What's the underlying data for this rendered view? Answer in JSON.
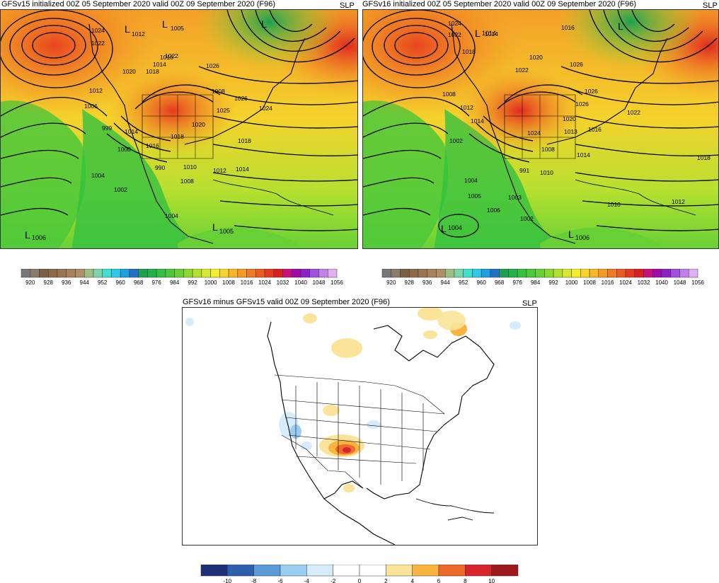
{
  "panels": [
    {
      "id": "gfsv15",
      "title": "GFSv15 initialized 00Z 05 September 2020 valid 00Z 09 September 2020 (F96)",
      "variable": "SLP",
      "contour_labels": [
        "1024",
        "1022",
        "1012",
        "1005",
        "1014",
        "1016",
        "1022",
        "1020",
        "1018",
        "1026",
        "1012",
        "1008",
        "1006",
        "1026",
        "1025",
        "999",
        "1014",
        "1020",
        "1024",
        "1016",
        "1018",
        "1000",
        "1018",
        "990",
        "1010",
        "1004",
        "1008",
        "1012",
        "1014",
        "1002",
        "1004",
        "1005",
        "1006",
        "1004",
        "1012"
      ],
      "lows": [
        "1006",
        "1005",
        "1012",
        "1005"
      ]
    },
    {
      "id": "gfsv16",
      "title": "GFSv16 initialized 00Z 05 September 2020 valid 00Z 09 September 2020 (F96)",
      "variable": "SLP",
      "contour_labels": [
        "1024",
        "1022",
        "1014",
        "1016",
        "1018",
        "1020",
        "1022",
        "1026",
        "1008",
        "1012",
        "1026",
        "1020",
        "1026",
        "1022",
        "1014",
        "1013",
        "1016",
        "1024",
        "1002",
        "1008",
        "1014",
        "1018",
        "991",
        "1010",
        "1004",
        "1005",
        "1006",
        "1003",
        "1002",
        "1010",
        "1012",
        "1004",
        "1006",
        "1008"
      ],
      "lows": [
        "1004",
        "1006",
        "1014"
      ]
    }
  ],
  "slp_colorbar": {
    "ticks": [
      "920",
      "928",
      "936",
      "944",
      "952",
      "960",
      "968",
      "976",
      "984",
      "992",
      "1000",
      "1008",
      "1016",
      "1024",
      "1032",
      "1040",
      "1048",
      "1056"
    ],
    "colors": [
      "#777777",
      "#8a7b6b",
      "#7a5f44",
      "#8d6a49",
      "#9b7552",
      "#a7825b",
      "#b08f66",
      "#9dbf86",
      "#7fd4a8",
      "#40e0d0",
      "#30c8e8",
      "#1ea0e0",
      "#2070c8",
      "#1fa050",
      "#22b04a",
      "#34c040",
      "#4cc83a",
      "#66d034",
      "#8ad830",
      "#b4e030",
      "#d8e830",
      "#f2ee2e",
      "#f8d42a",
      "#f8b628",
      "#f49a26",
      "#f07a24",
      "#ea5a22",
      "#e43a20",
      "#d81e1e",
      "#c8107a",
      "#a00aa8",
      "#8c20c8",
      "#a050dc",
      "#c080e8",
      "#e0b0f0"
    ]
  },
  "diff_panel": {
    "title": "GFSv16 minus GFSv15 valid 00Z 09 September 2020 (F96)",
    "variable": "SLP"
  },
  "diff_colorbar": {
    "ticks": [
      "-10",
      "-8",
      "-6",
      "-4",
      "-2",
      "0",
      "2",
      "4",
      "6",
      "8",
      "10"
    ],
    "colors": [
      "#1c2f78",
      "#2d5fac",
      "#5a9ad6",
      "#99cdf1",
      "#d6ecfa",
      "#ffffff",
      "#ffffff",
      "#fbe49a",
      "#f8b43e",
      "#ee6a2a",
      "#d7262b",
      "#9c1a1c"
    ]
  }
}
